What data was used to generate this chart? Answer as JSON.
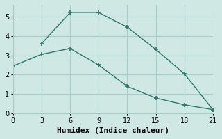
{
  "line1": {
    "x": [
      3,
      6,
      9,
      12,
      15,
      18,
      21
    ],
    "y": [
      3.6,
      5.2,
      5.2,
      4.45,
      3.3,
      2.05,
      0.2
    ]
  },
  "line2": {
    "x": [
      0,
      3,
      6,
      9,
      12,
      15,
      18,
      21
    ],
    "y": [
      2.45,
      3.05,
      3.35,
      2.5,
      1.4,
      0.8,
      0.45,
      0.2
    ]
  },
  "xlabel": "Humidex (Indice chaleur)",
  "xlim": [
    0,
    21
  ],
  "ylim": [
    0,
    5.6
  ],
  "xticks": [
    0,
    3,
    6,
    9,
    12,
    15,
    18,
    21
  ],
  "yticks": [
    0,
    1,
    2,
    3,
    4,
    5
  ],
  "background_color": "#cfe8e4",
  "grid_color": "#a8ccc8",
  "line_color": "#2a7a6a",
  "tick_label_fontsize": 7,
  "xlabel_fontsize": 8
}
